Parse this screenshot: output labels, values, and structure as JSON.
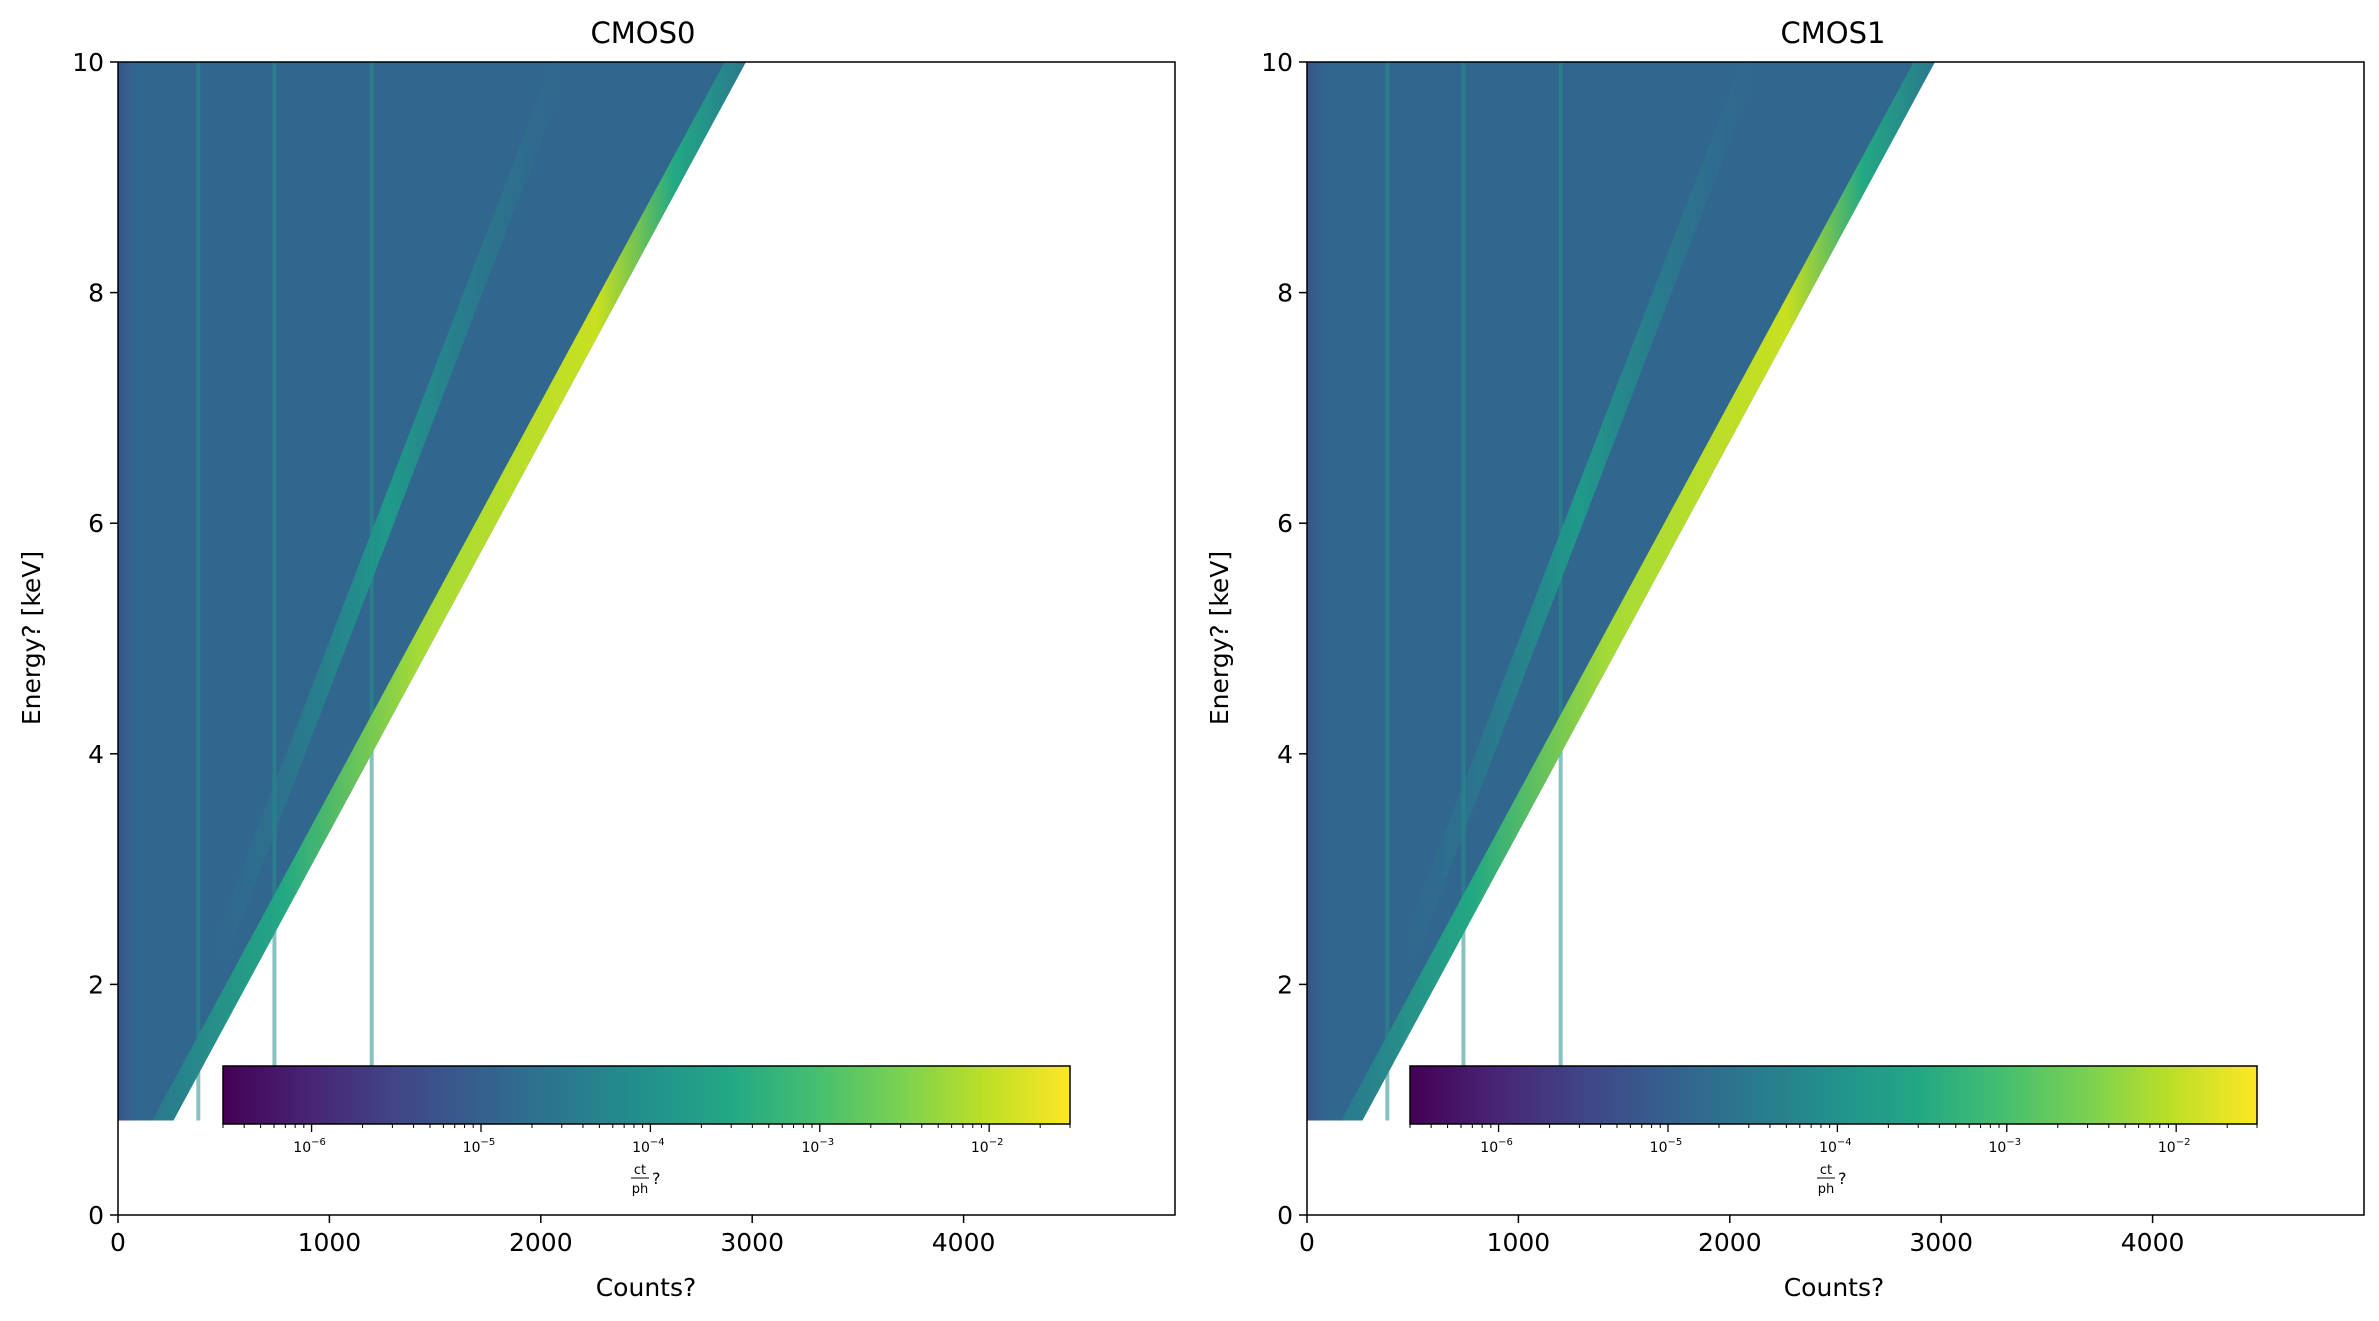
{
  "chart_data": [
    {
      "type": "heatmap",
      "title": "CMOS0",
      "xlabel": "Counts?",
      "ylabel": "Energy? [keV]",
      "xlim": [
        0,
        5000
      ],
      "ylim": [
        0,
        10
      ],
      "xticks": [
        0,
        1000,
        2000,
        3000,
        4000
      ],
      "xtick_labels": [
        "0",
        "1000",
        "2000",
        "3000",
        "4000"
      ],
      "yticks": [
        0,
        2,
        4,
        6,
        8,
        10
      ],
      "ytick_labels": [
        "0",
        "2",
        "4",
        "6",
        "8",
        "10"
      ],
      "energy_range": [
        0.82,
        10
      ],
      "main_peak_counts_per_keV": 295,
      "escape_peak_counts_per_keV": 210,
      "edge_lines_counts": [
        380,
        740,
        1200
      ],
      "colormap": "viridis",
      "colorbar": {
        "label": "ct/ph?",
        "label_num": "ct",
        "label_den": "ph",
        "label_suffix": "?",
        "scale": "log",
        "range": [
          3e-07,
          0.03
        ],
        "ticks": [
          1e-06,
          1e-05,
          0.0001,
          0.001,
          0.01
        ],
        "tick_labels": [
          {
            "base": "10",
            "exp": "−6"
          },
          {
            "base": "10",
            "exp": "−5"
          },
          {
            "base": "10",
            "exp": "−4"
          },
          {
            "base": "10",
            "exp": "−3"
          },
          {
            "base": "10",
            "exp": "−2"
          }
        ],
        "orientation": "horizontal",
        "placement": "inset-bottom"
      }
    },
    {
      "type": "heatmap",
      "title": "CMOS1",
      "xlabel": "Counts?",
      "ylabel": "Energy? [keV]",
      "xlim": [
        0,
        5000
      ],
      "ylim": [
        0,
        10
      ],
      "xticks": [
        0,
        1000,
        2000,
        3000,
        4000
      ],
      "xtick_labels": [
        "0",
        "1000",
        "2000",
        "3000",
        "4000"
      ],
      "yticks": [
        0,
        2,
        4,
        6,
        8,
        10
      ],
      "ytick_labels": [
        "0",
        "2",
        "4",
        "6",
        "8",
        "10"
      ],
      "energy_range": [
        0.82,
        10
      ],
      "main_peak_counts_per_keV": 295,
      "escape_peak_counts_per_keV": 210,
      "edge_lines_counts": [
        380,
        740,
        1200
      ],
      "colormap": "viridis",
      "colorbar": {
        "label": "ct/ph?",
        "label_num": "ct",
        "label_den": "ph",
        "label_suffix": "?",
        "scale": "log",
        "range": [
          3e-07,
          0.03
        ],
        "ticks": [
          1e-06,
          1e-05,
          0.0001,
          0.001,
          0.01
        ],
        "tick_labels": [
          {
            "base": "10",
            "exp": "−6"
          },
          {
            "base": "10",
            "exp": "−5"
          },
          {
            "base": "10",
            "exp": "−4"
          },
          {
            "base": "10",
            "exp": "−3"
          },
          {
            "base": "10",
            "exp": "−2"
          }
        ],
        "orientation": "horizontal",
        "placement": "inset-bottom"
      }
    }
  ]
}
